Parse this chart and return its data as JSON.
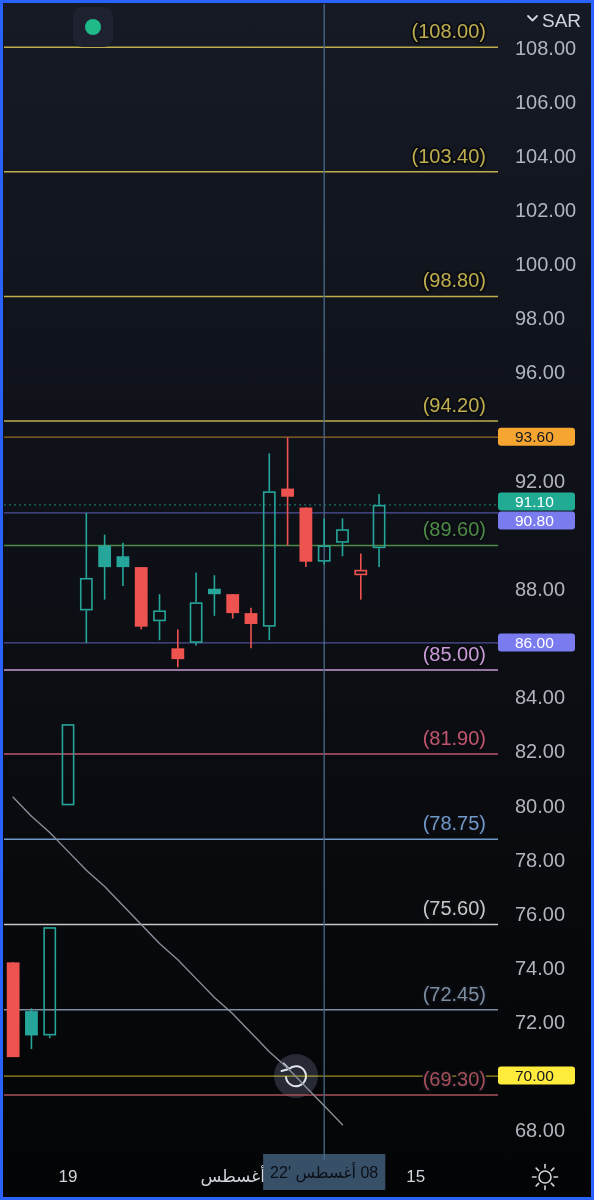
{
  "chart_data": {
    "type": "candlestick",
    "ylabel": "SAR",
    "categories": [
      null,
      null,
      null,
      "19",
      null,
      null,
      null,
      null,
      null,
      null,
      null,
      null,
      "أغسطس",
      null,
      null,
      null,
      null,
      "08 أغسطس '22",
      null,
      null,
      null,
      null,
      "15",
      null,
      null,
      null,
      null
    ],
    "ohlc": [
      [
        74.2,
        74.2,
        70.7,
        70.7
      ],
      [
        72.4,
        72.5,
        71.0,
        71.5
      ],
      [
        71.5,
        75.5,
        71.4,
        75.5
      ],
      [
        80.0,
        83.0,
        80.0,
        83.0
      ],
      [
        87.2,
        90.8,
        86.0,
        88.4
      ],
      [
        89.6,
        90.0,
        87.6,
        88.8
      ],
      [
        89.2,
        89.7,
        88.1,
        88.8
      ],
      [
        88.8,
        88.8,
        86.5,
        86.6
      ],
      [
        86.8,
        87.8,
        86.1,
        87.2
      ],
      [
        85.8,
        86.5,
        85.1,
        85.4
      ],
      [
        86.0,
        88.6,
        85.9,
        87.5
      ],
      [
        88.0,
        88.5,
        87.0,
        87.8
      ],
      [
        87.8,
        87.8,
        86.9,
        87.1
      ],
      [
        87.1,
        87.3,
        85.8,
        86.7
      ],
      [
        86.6,
        93.0,
        86.1,
        91.6
      ],
      [
        91.7,
        93.6,
        89.6,
        91.4
      ],
      [
        91.0,
        91.0,
        88.8,
        89.0
      ],
      [
        89.0,
        90.6,
        88.9,
        89.6
      ],
      [
        89.7,
        90.6,
        89.2,
        90.2
      ],
      [
        88.5,
        89.3,
        87.6,
        88.7
      ],
      [
        89.5,
        91.5,
        88.8,
        91.1
      ],
      null,
      null,
      null,
      null,
      null,
      null
    ],
    "colors": [
      "#ef5350",
      "#26a69a",
      "#26a69a",
      "#26a69a",
      "#26a69a",
      "#26a69a",
      "#26a69a",
      "#ef5350",
      "#26a69a",
      "#ef5350",
      "#26a69a",
      "#26a69a",
      "#ef5350",
      "#ef5350",
      "#26a69a",
      "#ef5350",
      "#ef5350",
      "#26a69a",
      "#26a69a",
      "#ef5350",
      "#26a69a",
      null,
      null,
      null,
      null,
      null,
      null
    ],
    "series": [
      {
        "type": "line",
        "color": "#8a8e99",
        "values": [
          80.3,
          79.6,
          79.0,
          78.3,
          77.6,
          77.0,
          76.3,
          75.6,
          74.9,
          74.3,
          73.6,
          72.9,
          72.3,
          71.6,
          70.9,
          70.3,
          69.6,
          68.9,
          68.2,
          null,
          null,
          null,
          null,
          null,
          null,
          null,
          null
        ]
      }
    ],
    "ylim": [
      66.9,
      109.6
    ],
    "yticks": [
      {
        "value": 68,
        "label": "68.00"
      },
      {
        "value": 70,
        "label": "70.00"
      },
      {
        "value": 72,
        "label": "72.00"
      },
      {
        "value": 74,
        "label": "74.00"
      },
      {
        "value": 76,
        "label": "76.00"
      },
      {
        "value": 78,
        "label": "78.00"
      },
      {
        "value": 80,
        "label": "80.00"
      },
      {
        "value": 82,
        "label": "82.00"
      },
      {
        "value": 84,
        "label": "84.00"
      },
      {
        "value": 86,
        "label": "86.00"
      },
      {
        "value": 88,
        "label": "88.00"
      },
      {
        "value": 90.8,
        "label": "90.80"
      },
      {
        "value": 91.1,
        "label": "91.10"
      },
      {
        "value": 92,
        "label": "92.00"
      },
      {
        "value": 93.6,
        "label": "93.60"
      },
      {
        "value": 96,
        "label": "96.00"
      },
      {
        "value": 98,
        "label": "98.00"
      },
      {
        "value": 100,
        "label": "100.00"
      },
      {
        "value": 102,
        "label": "102.00"
      },
      {
        "value": 104,
        "label": "104.00"
      },
      {
        "value": 106,
        "label": "106.00"
      },
      {
        "value": 108,
        "label": "108.00"
      }
    ],
    "ref_lines": [
      {
        "axis": "y",
        "value": 108,
        "label": "(108.00)",
        "color": "#bfae4e"
      },
      {
        "axis": "y",
        "value": 103.4,
        "label": "(103.40)",
        "color": "#bfae4e"
      },
      {
        "axis": "y",
        "value": 98.8,
        "label": "(98.80)",
        "color": "#bfae4e"
      },
      {
        "axis": "y",
        "value": 94.2,
        "label": "(94.20)",
        "color": "#bfae4e"
      },
      {
        "axis": "y",
        "value": 89.6,
        "label": "(89.60)",
        "color": "#4e8a47"
      },
      {
        "axis": "y",
        "value": 85,
        "label": "(85.00)",
        "color": "#c99ad6"
      },
      {
        "axis": "y",
        "value": 81.9,
        "label": "(81.90)",
        "color": "#c2566f"
      },
      {
        "axis": "y",
        "value": 78.75,
        "label": "(78.75)",
        "color": "#7097c8"
      },
      {
        "axis": "y",
        "value": 75.6,
        "label": "(75.60)",
        "color": "#c8c8c8"
      },
      {
        "axis": "y",
        "value": 72.45,
        "label": "(72.45)",
        "color": "#7d8ea3"
      },
      {
        "axis": "y",
        "value": 69.3,
        "label": "(69.30)",
        "color": "#a8505a"
      },
      {
        "axis": "y",
        "value": 93.6,
        "color": "#f7a531"
      },
      {
        "axis": "y",
        "value": 91.1,
        "color": "#22ab94",
        "line_style": "dotted"
      },
      {
        "axis": "y",
        "value": 90.8,
        "color": "#7b7bf0"
      },
      {
        "axis": "y",
        "value": 86,
        "color": "#7b7bf0"
      },
      {
        "axis": "y",
        "value": 70,
        "color": "#ffeb3b"
      },
      {
        "axis": "x",
        "value": "08 أغسطس '22",
        "color": "#4a6a88"
      }
    ]
  }
}
